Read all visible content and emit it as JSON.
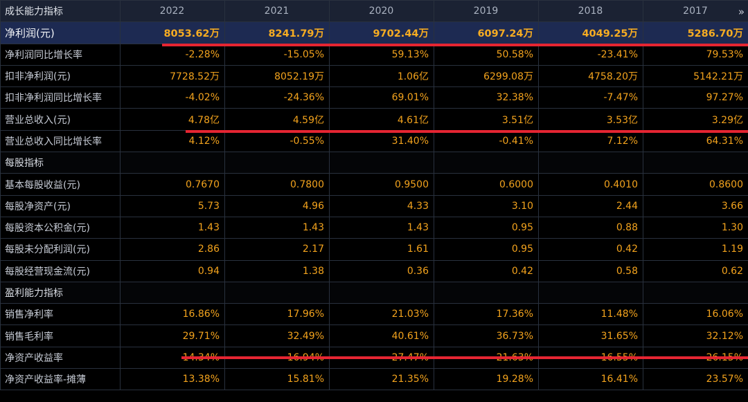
{
  "header": {
    "corner_label": "成长能力指标",
    "years": [
      "2022",
      "2021",
      "2020",
      "2019",
      "2018",
      "2017"
    ],
    "more_icon": "double-chevron-right-icon"
  },
  "rows": [
    {
      "label": "净利润(元)",
      "values": [
        "8053.62万",
        "8241.79万",
        "9702.44万",
        "6097.24万",
        "4049.25万",
        "5286.70万"
      ],
      "highlight": true
    },
    {
      "label": "净利润同比增长率",
      "values": [
        "-2.28%",
        "-15.05%",
        "59.13%",
        "50.58%",
        "-23.41%",
        "79.53%"
      ]
    },
    {
      "label": "扣非净利润(元)",
      "values": [
        "7728.52万",
        "8052.19万",
        "1.06亿",
        "6299.08万",
        "4758.20万",
        "5142.21万"
      ]
    },
    {
      "label": "扣非净利润同比增长率",
      "values": [
        "-4.02%",
        "-24.36%",
        "69.01%",
        "32.38%",
        "-7.47%",
        "97.27%"
      ]
    },
    {
      "label": "营业总收入(元)",
      "values": [
        "4.78亿",
        "4.59亿",
        "4.61亿",
        "3.51亿",
        "3.53亿",
        "3.29亿"
      ]
    },
    {
      "label": "营业总收入同比增长率",
      "values": [
        "4.12%",
        "-0.55%",
        "31.40%",
        "-0.41%",
        "7.12%",
        "64.31%"
      ]
    },
    {
      "label": "每股指标",
      "values": [
        "",
        "",
        "",
        "",
        "",
        ""
      ],
      "section": true
    },
    {
      "label": "基本每股收益(元)",
      "values": [
        "0.7670",
        "0.7800",
        "0.9500",
        "0.6000",
        "0.4010",
        "0.8600"
      ]
    },
    {
      "label": "每股净资产(元)",
      "values": [
        "5.73",
        "4.96",
        "4.33",
        "3.10",
        "2.44",
        "3.66"
      ]
    },
    {
      "label": "每股资本公积金(元)",
      "values": [
        "1.43",
        "1.43",
        "1.43",
        "0.95",
        "0.88",
        "1.30"
      ]
    },
    {
      "label": "每股未分配利润(元)",
      "values": [
        "2.86",
        "2.17",
        "1.61",
        "0.95",
        "0.42",
        "1.19"
      ]
    },
    {
      "label": "每股经营现金流(元)",
      "values": [
        "0.94",
        "1.38",
        "0.36",
        "0.42",
        "0.58",
        "0.62"
      ]
    },
    {
      "label": "盈利能力指标",
      "values": [
        "",
        "",
        "",
        "",
        "",
        ""
      ],
      "section": true
    },
    {
      "label": "销售净利率",
      "values": [
        "16.86%",
        "17.96%",
        "21.03%",
        "17.36%",
        "11.48%",
        "16.06%"
      ]
    },
    {
      "label": "销售毛利率",
      "values": [
        "29.71%",
        "32.49%",
        "40.61%",
        "36.73%",
        "31.65%",
        "32.12%"
      ]
    },
    {
      "label": "净资产收益率",
      "values": [
        "14.34%",
        "16.94%",
        "27.47%",
        "21.63%",
        "16.55%",
        "26.15%"
      ]
    },
    {
      "label": "净资产收益率-摊薄",
      "values": [
        "13.38%",
        "15.81%",
        "21.35%",
        "19.28%",
        "16.41%",
        "23.57%"
      ]
    }
  ],
  "colors": {
    "background": "#000000",
    "header_bg": "#1b2233",
    "highlight_row_bg": "#1d2a52",
    "value_text": "#f3a31d",
    "label_text": "#c7ccd6",
    "grid_line": "#29313e",
    "annotation_mark": "#e52532"
  }
}
